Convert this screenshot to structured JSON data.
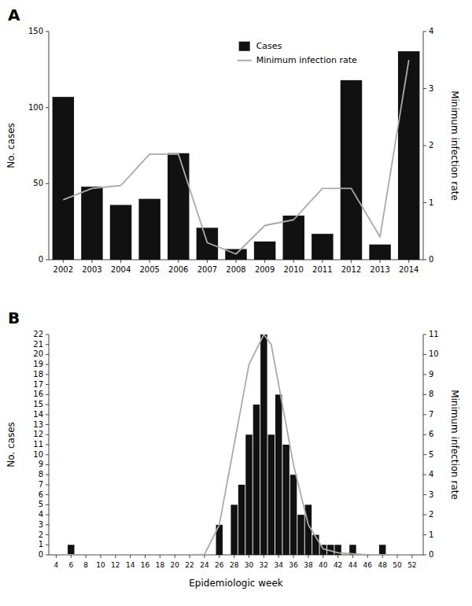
{
  "chart_data": [
    {
      "type": "bar",
      "title": "A",
      "categories": [
        "2002",
        "2003",
        "2004",
        "2005",
        "2006",
        "2007",
        "2008",
        "2009",
        "2010",
        "2011",
        "2012",
        "2013",
        "2014"
      ],
      "series": [
        {
          "name": "Cases",
          "type": "bar",
          "color": "#111111",
          "values": [
            107,
            48,
            36,
            40,
            70,
            21,
            7,
            12,
            29,
            17,
            118,
            10,
            137
          ]
        },
        {
          "name": "Minimum infection rate",
          "type": "line",
          "color": "#aaaaaa",
          "axis": "y2",
          "values": [
            1.05,
            1.25,
            1.3,
            1.85,
            1.85,
            0.3,
            0.1,
            0.6,
            0.7,
            1.25,
            1.25,
            0.4,
            3.5
          ]
        }
      ],
      "y_label": "No. cases",
      "y2_label": "Minimum infection rate",
      "ylim": [
        0,
        150
      ],
      "yticks": [
        0,
        50,
        100,
        150
      ],
      "y2lim": [
        0,
        4
      ],
      "y2ticks": [
        0,
        1,
        2,
        3,
        4
      ],
      "legend": "top"
    },
    {
      "type": "bar",
      "title": "B",
      "series": [
        {
          "type": "bar",
          "color": "#111111",
          "x": [
            4,
            5,
            6,
            7,
            8,
            9,
            10,
            11,
            12,
            13,
            14,
            15,
            16,
            17,
            18,
            19,
            20,
            21,
            22,
            23,
            24,
            25,
            26,
            27,
            28,
            29,
            30,
            31,
            32,
            33,
            34,
            35,
            36,
            37,
            38,
            39,
            40,
            41,
            42,
            43,
            44,
            45,
            46,
            47,
            48,
            49,
            50,
            51,
            52
          ],
          "values": [
            0,
            0,
            1,
            0,
            0,
            0,
            0,
            0,
            0,
            0,
            0,
            0,
            0,
            0,
            0,
            0,
            0,
            0,
            0,
            0,
            0,
            0,
            3,
            0,
            5,
            7,
            12,
            15,
            22,
            12,
            16,
            11,
            8,
            4,
            5,
            2,
            1,
            1,
            1,
            0,
            1,
            0,
            0,
            0,
            1,
            0,
            0,
            0,
            0
          ]
        },
        {
          "type": "line",
          "color": "#aaaaaa",
          "axis": "y2",
          "x": [
            4,
            6,
            8,
            10,
            12,
            14,
            16,
            18,
            20,
            22,
            24,
            26,
            28,
            30,
            32,
            33,
            34,
            36,
            38,
            40,
            42,
            44,
            46,
            48,
            50,
            52
          ],
          "values": [
            0,
            0,
            0,
            0,
            0,
            0,
            0,
            0,
            0,
            0,
            0.02,
            1.5,
            5.5,
            9.5,
            11,
            10.5,
            8.5,
            4.5,
            1.5,
            0.3,
            0.1,
            0.05,
            0,
            0,
            0,
            0
          ]
        }
      ],
      "x_label": "Epidemiologic week",
      "y_label": "No. cases",
      "y2_label": "Minimum infection rate",
      "xlim": [
        3.0,
        53.5
      ],
      "xticks": [
        4,
        6,
        8,
        10,
        12,
        14,
        16,
        18,
        20,
        22,
        24,
        26,
        28,
        30,
        32,
        34,
        36,
        38,
        40,
        42,
        44,
        46,
        48,
        50,
        52
      ],
      "ylim": [
        0,
        22
      ],
      "yticks": [
        0,
        1,
        2,
        3,
        4,
        5,
        6,
        7,
        8,
        9,
        10,
        11,
        12,
        13,
        14,
        15,
        16,
        17,
        18,
        19,
        20,
        21,
        22
      ],
      "y2lim": [
        0,
        11
      ],
      "y2ticks": [
        0,
        1,
        2,
        3,
        4,
        5,
        6,
        7,
        8,
        9,
        10,
        11
      ]
    }
  ]
}
